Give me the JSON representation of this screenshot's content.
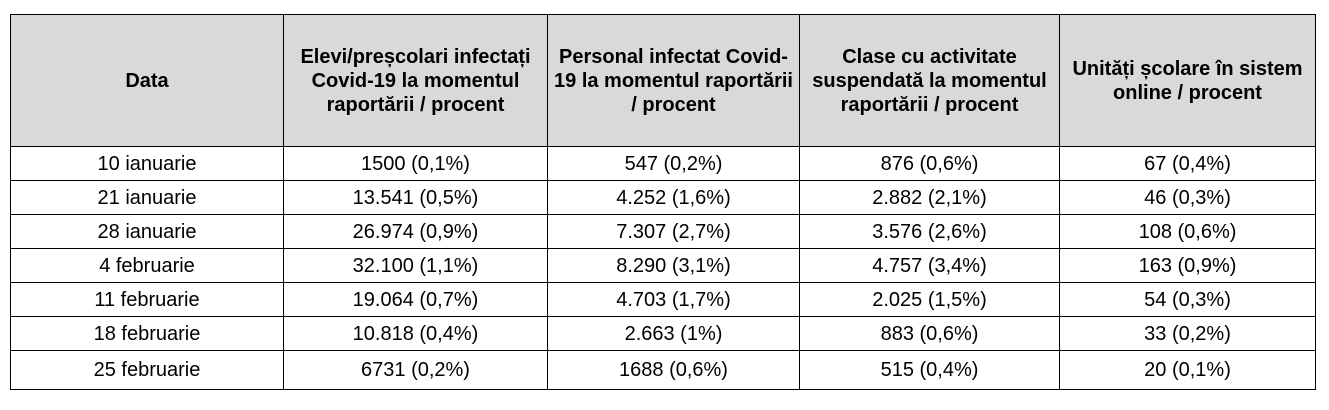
{
  "table": {
    "headers": [
      "Data",
      "Elevi/preșcolari infectați Covid-19 la momentul raportării / procent",
      "Personal infectat Covid-19 la momentul raportării / procent",
      "Clase cu activitate suspendată la momentul raportării / procent",
      "Unități școlare în sistem online / procent"
    ],
    "rows": [
      [
        "10 ianuarie",
        "1500 (0,1%)",
        "547 (0,2%)",
        "876 (0,6%)",
        "67 (0,4%)"
      ],
      [
        "21 ianuarie",
        "13.541 (0,5%)",
        "4.252 (1,6%)",
        "2.882 (2,1%)",
        "46 (0,3%)"
      ],
      [
        "28 ianuarie",
        "26.974 (0,9%)",
        "7.307 (2,7%)",
        "3.576 (2,6%)",
        "108 (0,6%)"
      ],
      [
        "4 februarie",
        "32.100 (1,1%)",
        "8.290 (3,1%)",
        "4.757 (3,4%)",
        "163 (0,9%)"
      ],
      [
        "11 februarie",
        "19.064 (0,7%)",
        "4.703 (1,7%)",
        "2.025 (1,5%)",
        "54 (0,3%)"
      ],
      [
        "18 februarie",
        "10.818 (0,4%)",
        "2.663 (1%)",
        "883 (0,6%)",
        "33 (0,2%)"
      ],
      [
        "25 februarie",
        "6731 (0,2%)",
        "1688 (0,6%)",
        "515 (0,4%)",
        "20 (0,1%)"
      ]
    ]
  },
  "colors": {
    "header_background": "#d9d9d9",
    "border": "#000000",
    "text": "#000000"
  }
}
